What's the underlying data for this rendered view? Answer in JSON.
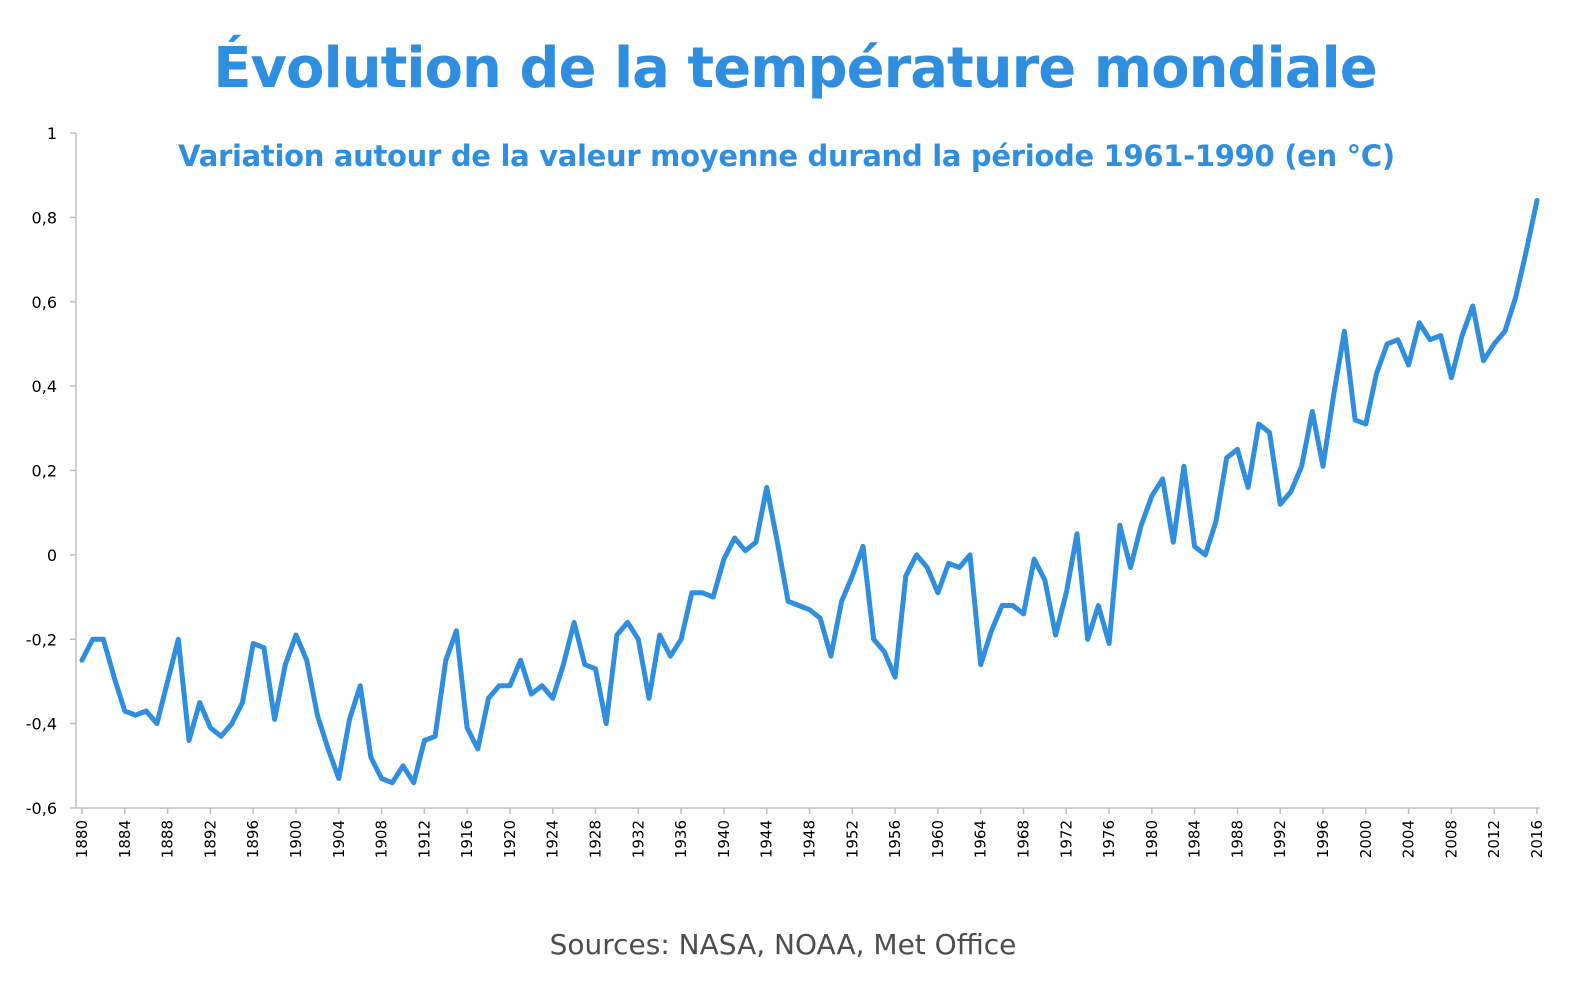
{
  "colors": {
    "accent": "#2f8ee0",
    "axis": "#bfbfbf",
    "source_text": "#4d4d4d"
  },
  "chart_data": {
    "type": "line",
    "title": "Évolution de la température mondiale",
    "subtitle": "Variation autour de la valeur moyenne durand la période 1961-1990 (en °C)",
    "source": "Sources: NASA, NOAA, Met Office",
    "xlabel": "",
    "ylabel": "",
    "xlim": [
      1880,
      2016
    ],
    "ylim": [
      -0.6,
      1
    ],
    "y_ticks": [
      1,
      0.8,
      0.6,
      0.4,
      0.2,
      0,
      -0.2,
      -0.4,
      -0.6
    ],
    "y_tick_labels": [
      "1",
      "0,8",
      "0,6",
      "0,4",
      "0,2",
      "0",
      "-0,2",
      "-0,4",
      "-0,6"
    ],
    "x_ticks": [
      1880,
      1884,
      1888,
      1892,
      1896,
      1900,
      1904,
      1908,
      1912,
      1916,
      1920,
      1924,
      1928,
      1932,
      1936,
      1940,
      1944,
      1948,
      1952,
      1956,
      1960,
      1964,
      1968,
      1972,
      1976,
      1980,
      1984,
      1988,
      1992,
      1996,
      2000,
      2004,
      2008,
      2012,
      2016
    ],
    "x_tick_labels": [
      "1880",
      "1884",
      "1888",
      "1892",
      "1896",
      "1900",
      "1904",
      "1908",
      "1912",
      "1916",
      "1920",
      "1924",
      "1928",
      "1932",
      "1936",
      "1940",
      "1944",
      "1948",
      "1952",
      "1956",
      "1960",
      "1964",
      "1968",
      "1972",
      "1976",
      "1980",
      "1984",
      "1988",
      "1992",
      "1996",
      "2000",
      "2004",
      "2008",
      "2012",
      "2016"
    ],
    "grid": false,
    "legend": "none",
    "x": [
      1880,
      1881,
      1882,
      1883,
      1884,
      1885,
      1886,
      1887,
      1888,
      1889,
      1890,
      1891,
      1892,
      1893,
      1894,
      1895,
      1896,
      1897,
      1898,
      1899,
      1900,
      1901,
      1902,
      1903,
      1904,
      1905,
      1906,
      1907,
      1908,
      1909,
      1910,
      1911,
      1912,
      1913,
      1914,
      1915,
      1916,
      1917,
      1918,
      1919,
      1920,
      1921,
      1922,
      1923,
      1924,
      1925,
      1926,
      1927,
      1928,
      1929,
      1930,
      1931,
      1932,
      1933,
      1934,
      1935,
      1936,
      1937,
      1938,
      1939,
      1940,
      1941,
      1942,
      1943,
      1944,
      1945,
      1946,
      1947,
      1948,
      1949,
      1950,
      1951,
      1952,
      1953,
      1954,
      1955,
      1956,
      1957,
      1958,
      1959,
      1960,
      1961,
      1962,
      1963,
      1964,
      1965,
      1966,
      1967,
      1968,
      1969,
      1970,
      1971,
      1972,
      1973,
      1974,
      1975,
      1976,
      1977,
      1978,
      1979,
      1980,
      1981,
      1982,
      1983,
      1984,
      1985,
      1986,
      1987,
      1988,
      1989,
      1990,
      1991,
      1992,
      1993,
      1994,
      1995,
      1996,
      1997,
      1998,
      1999,
      2000,
      2001,
      2002,
      2003,
      2004,
      2005,
      2006,
      2007,
      2008,
      2009,
      2010,
      2011,
      2012,
      2013,
      2014,
      2015,
      2016
    ],
    "series": [
      {
        "values": [
          -0.25,
          -0.2,
          -0.2,
          -0.29,
          -0.37,
          -0.38,
          -0.37,
          -0.4,
          -0.3,
          -0.2,
          -0.44,
          -0.35,
          -0.41,
          -0.43,
          -0.4,
          -0.35,
          -0.21,
          -0.22,
          -0.39,
          -0.26,
          -0.19,
          -0.25,
          -0.38,
          -0.46,
          -0.53,
          -0.39,
          -0.31,
          -0.48,
          -0.53,
          -0.54,
          -0.5,
          -0.54,
          -0.44,
          -0.43,
          -0.25,
          -0.18,
          -0.41,
          -0.46,
          -0.34,
          -0.31,
          -0.31,
          -0.25,
          -0.33,
          -0.31,
          -0.34,
          -0.26,
          -0.16,
          -0.26,
          -0.27,
          -0.4,
          -0.19,
          -0.16,
          -0.2,
          -0.34,
          -0.19,
          -0.24,
          -0.2,
          -0.09,
          -0.09,
          -0.1,
          -0.01,
          0.04,
          0.01,
          0.03,
          0.16,
          0.03,
          -0.11,
          -0.12,
          -0.13,
          -0.15,
          -0.24,
          -0.11,
          -0.05,
          0.02,
          -0.2,
          -0.23,
          -0.29,
          -0.05,
          0.0,
          -0.03,
          -0.09,
          -0.02,
          -0.03,
          0.0,
          -0.26,
          -0.18,
          -0.12,
          -0.12,
          -0.14,
          -0.01,
          -0.06,
          -0.19,
          -0.09,
          0.05,
          -0.2,
          -0.12,
          -0.21,
          0.07,
          -0.03,
          0.07,
          0.14,
          0.18,
          0.03,
          0.21,
          0.02,
          0.0,
          0.08,
          0.23,
          0.25,
          0.16,
          0.31,
          0.29,
          0.12,
          0.15,
          0.21,
          0.34,
          0.21,
          0.38,
          0.53,
          0.32,
          0.31,
          0.43,
          0.5,
          0.51,
          0.45,
          0.55,
          0.51,
          0.52,
          0.42,
          0.52,
          0.59,
          0.46,
          0.5,
          0.53,
          0.61,
          0.72,
          0.84
        ]
      }
    ]
  }
}
